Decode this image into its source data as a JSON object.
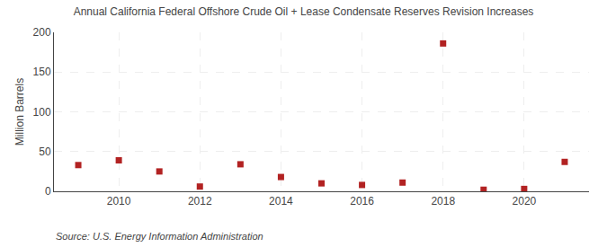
{
  "chart_data": {
    "type": "scatter",
    "title": "Annual California Federal Offshore Crude Oil + Lease Condensate Reserves Revision Increases",
    "ylabel": "Million Barrels",
    "annotations": [
      "Source: U.S. Energy Information Administration"
    ],
    "x": [
      2009,
      2010,
      2011,
      2012,
      2013,
      2014,
      2015,
      2016,
      2017,
      2018,
      2019,
      2020,
      2021
    ],
    "values": [
      33,
      39,
      25,
      6,
      34,
      18,
      10,
      8,
      11,
      186,
      2,
      3,
      37
    ],
    "color": "#B22222",
    "marker": "square",
    "xlim": [
      2008.4,
      2021.6
    ],
    "xticks": [
      2010,
      2012,
      2014,
      2016,
      2018,
      2020
    ],
    "ylim": [
      0,
      200
    ],
    "yticks": [
      0,
      50,
      100,
      150,
      200
    ],
    "grid": true
  }
}
